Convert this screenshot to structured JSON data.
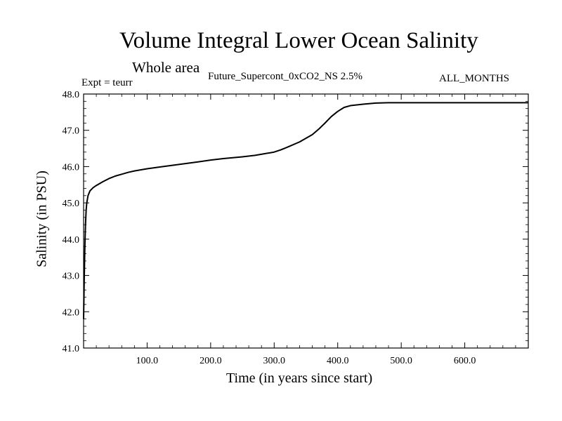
{
  "chart_data": {
    "type": "line",
    "title": "Volume Integral Lower Ocean Salinity",
    "subtitle": "Whole area",
    "expt_label": "Expt = teurr",
    "experiment": "Future_Supercont_0xCO2_NS 2.5%",
    "months": "ALL_MONTHS",
    "xlabel": "Time (in years since start)",
    "ylabel": "Salinity (in PSU)",
    "xlim": [
      0,
      700
    ],
    "ylim": [
      41.0,
      48.0
    ],
    "xticks": [
      {
        "value": 100,
        "label": "100.0"
      },
      {
        "value": 200,
        "label": "200.0"
      },
      {
        "value": 300,
        "label": "300.0"
      },
      {
        "value": 400,
        "label": "400.0"
      },
      {
        "value": 500,
        "label": "500.0"
      },
      {
        "value": 600,
        "label": "600.0"
      }
    ],
    "yticks": [
      {
        "value": 41.0,
        "label": "41.0"
      },
      {
        "value": 42.0,
        "label": "42.0"
      },
      {
        "value": 43.0,
        "label": "43.0"
      },
      {
        "value": 44.0,
        "label": "44.0"
      },
      {
        "value": 45.0,
        "label": "45.0"
      },
      {
        "value": 46.0,
        "label": "46.0"
      },
      {
        "value": 47.0,
        "label": "47.0"
      },
      {
        "value": 48.0,
        "label": "48.0"
      }
    ],
    "series": [
      {
        "color": "#000000",
        "x": [
          0,
          1,
          2,
          3,
          4,
          5,
          7,
          10,
          15,
          20,
          30,
          40,
          50,
          60,
          70,
          80,
          100,
          120,
          150,
          180,
          200,
          220,
          250,
          270,
          300,
          310,
          320,
          340,
          360,
          370,
          380,
          390,
          400,
          410,
          420,
          440,
          460,
          480,
          500,
          550,
          600,
          650,
          700
        ],
        "y": [
          41.8,
          42.9,
          43.8,
          44.4,
          44.8,
          45.0,
          45.2,
          45.33,
          45.42,
          45.48,
          45.58,
          45.67,
          45.74,
          45.79,
          45.84,
          45.88,
          45.94,
          45.99,
          46.06,
          46.13,
          46.18,
          46.22,
          46.27,
          46.31,
          46.4,
          46.46,
          46.53,
          46.68,
          46.88,
          47.03,
          47.2,
          47.38,
          47.52,
          47.63,
          47.68,
          47.72,
          47.75,
          47.76,
          47.76,
          47.76,
          47.76,
          47.76,
          47.76
        ]
      }
    ]
  }
}
